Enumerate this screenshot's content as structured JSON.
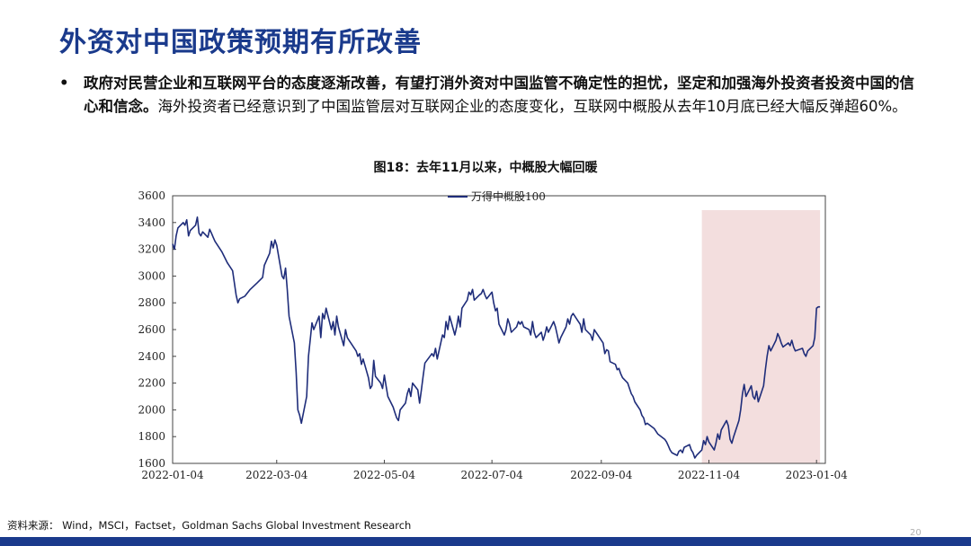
{
  "title": "外资对中国政策预期有所改善",
  "bullet": {
    "bold": "政府对民营企业和互联网平台的态度逐渐改善，有望打消外资对中国监管不确定性的担忧，坚定和加强海外投资者投资中国的信心和信念。",
    "normal": "海外投资者已经意识到了中国监管层对互联网企业的态度变化，互联网中概股从去年10月底已经大幅反弹超60%。"
  },
  "source": "资料来源： Wind，MSCI，Factset，Goldman Sachs Global Investment Research",
  "page_number": "20",
  "colors": {
    "title": "#1a3a8c",
    "line": "#1f2d7a",
    "highlight": "#f3dede",
    "footer": "#1a3a8c"
  },
  "chart_data": {
    "type": "line",
    "title": "图18：去年11月以来，中概股大幅回暖",
    "xlabel": "",
    "ylabel": "",
    "ylim": [
      1600,
      3600
    ],
    "yticks": [
      1600,
      1800,
      2000,
      2200,
      2400,
      2600,
      2800,
      3000,
      3200,
      3400,
      3600
    ],
    "xticks": [
      "2022-01-04",
      "2022-03-04",
      "2022-05-04",
      "2022-07-04",
      "2022-09-04",
      "2022-11-04",
      "2023-01-04"
    ],
    "xlim": [
      "2022-01-04",
      "2023-01-09"
    ],
    "legend_position": "top-center",
    "highlight_range": [
      "2022-10-31",
      "2023-01-06"
    ],
    "series": [
      {
        "name": "万得中概股100",
        "points": [
          [
            "2022-01-04",
            3240
          ],
          [
            "2022-01-05",
            3200
          ],
          [
            "2022-01-06",
            3300
          ],
          [
            "2022-01-07",
            3360
          ],
          [
            "2022-01-10",
            3400
          ],
          [
            "2022-01-11",
            3380
          ],
          [
            "2022-01-12",
            3420
          ],
          [
            "2022-01-13",
            3300
          ],
          [
            "2022-01-14",
            3340
          ],
          [
            "2022-01-17",
            3380
          ],
          [
            "2022-01-18",
            3440
          ],
          [
            "2022-01-19",
            3320
          ],
          [
            "2022-01-20",
            3300
          ],
          [
            "2022-01-21",
            3330
          ],
          [
            "2022-01-24",
            3290
          ],
          [
            "2022-01-25",
            3350
          ],
          [
            "2022-01-26",
            3320
          ],
          [
            "2022-01-27",
            3290
          ],
          [
            "2022-01-28",
            3260
          ],
          [
            "2022-02-01",
            3180
          ],
          [
            "2022-02-04",
            3100
          ],
          [
            "2022-02-07",
            3040
          ],
          [
            "2022-02-09",
            2860
          ],
          [
            "2022-02-10",
            2800
          ],
          [
            "2022-02-11",
            2830
          ],
          [
            "2022-02-14",
            2850
          ],
          [
            "2022-02-17",
            2900
          ],
          [
            "2022-02-21",
            2950
          ],
          [
            "2022-02-24",
            2990
          ],
          [
            "2022-02-25",
            3080
          ],
          [
            "2022-02-28",
            3170
          ],
          [
            "2022-03-01",
            3260
          ],
          [
            "2022-03-02",
            3210
          ],
          [
            "2022-03-03",
            3270
          ],
          [
            "2022-03-04",
            3230
          ],
          [
            "2022-03-07",
            3000
          ],
          [
            "2022-03-08",
            2980
          ],
          [
            "2022-03-09",
            3060
          ],
          [
            "2022-03-10",
            2900
          ],
          [
            "2022-03-11",
            2700
          ],
          [
            "2022-03-14",
            2500
          ],
          [
            "2022-03-15",
            2280
          ],
          [
            "2022-03-16",
            2000
          ],
          [
            "2022-03-17",
            1960
          ],
          [
            "2022-03-18",
            1900
          ],
          [
            "2022-03-21",
            2100
          ],
          [
            "2022-03-22",
            2400
          ],
          [
            "2022-03-23",
            2520
          ],
          [
            "2022-03-24",
            2650
          ],
          [
            "2022-03-25",
            2600
          ],
          [
            "2022-03-28",
            2700
          ],
          [
            "2022-03-29",
            2540
          ],
          [
            "2022-03-30",
            2720
          ],
          [
            "2022-03-31",
            2680
          ],
          [
            "2022-04-01",
            2760
          ],
          [
            "2022-04-04",
            2600
          ],
          [
            "2022-04-05",
            2660
          ],
          [
            "2022-04-06",
            2560
          ],
          [
            "2022-04-07",
            2700
          ],
          [
            "2022-04-08",
            2620
          ],
          [
            "2022-04-11",
            2480
          ],
          [
            "2022-04-12",
            2600
          ],
          [
            "2022-04-13",
            2540
          ],
          [
            "2022-04-14",
            2520
          ],
          [
            "2022-04-18",
            2440
          ],
          [
            "2022-04-19",
            2400
          ],
          [
            "2022-04-20",
            2420
          ],
          [
            "2022-04-21",
            2340
          ],
          [
            "2022-04-22",
            2380
          ],
          [
            "2022-04-25",
            2240
          ],
          [
            "2022-04-26",
            2160
          ],
          [
            "2022-04-27",
            2180
          ],
          [
            "2022-04-28",
            2370
          ],
          [
            "2022-04-29",
            2250
          ],
          [
            "2022-05-02",
            2200
          ],
          [
            "2022-05-03",
            2160
          ],
          [
            "2022-05-04",
            2260
          ],
          [
            "2022-05-05",
            2180
          ],
          [
            "2022-05-06",
            2100
          ],
          [
            "2022-05-09",
            2020
          ],
          [
            "2022-05-10",
            1980
          ],
          [
            "2022-05-11",
            1940
          ],
          [
            "2022-05-12",
            1920
          ],
          [
            "2022-05-13",
            2000
          ],
          [
            "2022-05-16",
            2050
          ],
          [
            "2022-05-17",
            2120
          ],
          [
            "2022-05-18",
            2160
          ],
          [
            "2022-05-19",
            2100
          ],
          [
            "2022-05-20",
            2200
          ],
          [
            "2022-05-23",
            2150
          ],
          [
            "2022-05-24",
            2050
          ],
          [
            "2022-05-25",
            2150
          ],
          [
            "2022-05-26",
            2250
          ],
          [
            "2022-05-27",
            2350
          ],
          [
            "2022-05-31",
            2420
          ],
          [
            "2022-06-01",
            2400
          ],
          [
            "2022-06-02",
            2460
          ],
          [
            "2022-06-03",
            2380
          ],
          [
            "2022-06-06",
            2560
          ],
          [
            "2022-06-07",
            2540
          ],
          [
            "2022-06-08",
            2660
          ],
          [
            "2022-06-09",
            2600
          ],
          [
            "2022-06-10",
            2700
          ],
          [
            "2022-06-13",
            2560
          ],
          [
            "2022-06-14",
            2620
          ],
          [
            "2022-06-15",
            2700
          ],
          [
            "2022-06-16",
            2620
          ],
          [
            "2022-06-17",
            2760
          ],
          [
            "2022-06-20",
            2820
          ],
          [
            "2022-06-21",
            2880
          ],
          [
            "2022-06-22",
            2860
          ],
          [
            "2022-06-23",
            2900
          ],
          [
            "2022-06-24",
            2820
          ],
          [
            "2022-06-27",
            2860
          ],
          [
            "2022-06-28",
            2870
          ],
          [
            "2022-06-29",
            2900
          ],
          [
            "2022-06-30",
            2860
          ],
          [
            "2022-07-01",
            2830
          ],
          [
            "2022-07-04",
            2880
          ],
          [
            "2022-07-05",
            2800
          ],
          [
            "2022-07-06",
            2740
          ],
          [
            "2022-07-07",
            2760
          ],
          [
            "2022-07-08",
            2640
          ],
          [
            "2022-07-11",
            2560
          ],
          [
            "2022-07-12",
            2600
          ],
          [
            "2022-07-13",
            2680
          ],
          [
            "2022-07-14",
            2640
          ],
          [
            "2022-07-15",
            2580
          ],
          [
            "2022-07-18",
            2620
          ],
          [
            "2022-07-19",
            2660
          ],
          [
            "2022-07-20",
            2640
          ],
          [
            "2022-07-21",
            2660
          ],
          [
            "2022-07-22",
            2620
          ],
          [
            "2022-07-25",
            2600
          ],
          [
            "2022-07-26",
            2560
          ],
          [
            "2022-07-27",
            2660
          ],
          [
            "2022-07-28",
            2580
          ],
          [
            "2022-07-29",
            2540
          ],
          [
            "2022-08-01",
            2580
          ],
          [
            "2022-08-02",
            2520
          ],
          [
            "2022-08-03",
            2560
          ],
          [
            "2022-08-04",
            2620
          ],
          [
            "2022-08-05",
            2580
          ],
          [
            "2022-08-08",
            2660
          ],
          [
            "2022-08-09",
            2620
          ],
          [
            "2022-08-10",
            2560
          ],
          [
            "2022-08-11",
            2500
          ],
          [
            "2022-08-12",
            2540
          ],
          [
            "2022-08-15",
            2620
          ],
          [
            "2022-08-16",
            2680
          ],
          [
            "2022-08-17",
            2640
          ],
          [
            "2022-08-18",
            2700
          ],
          [
            "2022-08-19",
            2720
          ],
          [
            "2022-08-22",
            2660
          ],
          [
            "2022-08-23",
            2640
          ],
          [
            "2022-08-24",
            2580
          ],
          [
            "2022-08-25",
            2680
          ],
          [
            "2022-08-26",
            2600
          ],
          [
            "2022-08-29",
            2560
          ],
          [
            "2022-08-30",
            2520
          ],
          [
            "2022-08-31",
            2600
          ],
          [
            "2022-09-01",
            2580
          ],
          [
            "2022-09-02",
            2560
          ],
          [
            "2022-09-05",
            2500
          ],
          [
            "2022-09-06",
            2420
          ],
          [
            "2022-09-07",
            2450
          ],
          [
            "2022-09-08",
            2440
          ],
          [
            "2022-09-09",
            2360
          ],
          [
            "2022-09-12",
            2340
          ],
          [
            "2022-09-13",
            2300
          ],
          [
            "2022-09-14",
            2310
          ],
          [
            "2022-09-15",
            2270
          ],
          [
            "2022-09-16",
            2240
          ],
          [
            "2022-09-19",
            2200
          ],
          [
            "2022-09-20",
            2160
          ],
          [
            "2022-09-21",
            2120
          ],
          [
            "2022-09-22",
            2100
          ],
          [
            "2022-09-23",
            2060
          ],
          [
            "2022-09-26",
            2000
          ],
          [
            "2022-09-27",
            1960
          ],
          [
            "2022-09-28",
            1940
          ],
          [
            "2022-09-29",
            1890
          ],
          [
            "2022-09-30",
            1900
          ],
          [
            "2022-10-04",
            1860
          ],
          [
            "2022-10-05",
            1840
          ],
          [
            "2022-10-06",
            1820
          ],
          [
            "2022-10-10",
            1780
          ],
          [
            "2022-10-11",
            1760
          ],
          [
            "2022-10-12",
            1730
          ],
          [
            "2022-10-13",
            1700
          ],
          [
            "2022-10-14",
            1680
          ],
          [
            "2022-10-17",
            1660
          ],
          [
            "2022-10-18",
            1690
          ],
          [
            "2022-10-19",
            1700
          ],
          [
            "2022-10-20",
            1680
          ],
          [
            "2022-10-21",
            1720
          ],
          [
            "2022-10-24",
            1740
          ],
          [
            "2022-10-25",
            1700
          ],
          [
            "2022-10-26",
            1680
          ],
          [
            "2022-10-27",
            1640
          ],
          [
            "2022-10-28",
            1660
          ],
          [
            "2022-10-31",
            1700
          ],
          [
            "2022-11-01",
            1770
          ],
          [
            "2022-11-02",
            1740
          ],
          [
            "2022-11-03",
            1800
          ],
          [
            "2022-11-04",
            1760
          ],
          [
            "2022-11-07",
            1700
          ],
          [
            "2022-11-08",
            1750
          ],
          [
            "2022-11-09",
            1820
          ],
          [
            "2022-11-10",
            1780
          ],
          [
            "2022-11-11",
            1850
          ],
          [
            "2022-11-14",
            1920
          ],
          [
            "2022-11-15",
            1880
          ],
          [
            "2022-11-16",
            1780
          ],
          [
            "2022-11-17",
            1750
          ],
          [
            "2022-11-18",
            1800
          ],
          [
            "2022-11-21",
            1920
          ],
          [
            "2022-11-22",
            2000
          ],
          [
            "2022-11-23",
            2120
          ],
          [
            "2022-11-24",
            2190
          ],
          [
            "2022-11-25",
            2100
          ],
          [
            "2022-11-28",
            2180
          ],
          [
            "2022-11-29",
            2100
          ],
          [
            "2022-11-30",
            2080
          ],
          [
            "2022-12-01",
            2140
          ],
          [
            "2022-12-02",
            2060
          ],
          [
            "2022-12-05",
            2180
          ],
          [
            "2022-12-06",
            2300
          ],
          [
            "2022-12-07",
            2400
          ],
          [
            "2022-12-08",
            2480
          ],
          [
            "2022-12-09",
            2440
          ],
          [
            "2022-12-12",
            2520
          ],
          [
            "2022-12-13",
            2570
          ],
          [
            "2022-12-14",
            2540
          ],
          [
            "2022-12-15",
            2500
          ],
          [
            "2022-12-16",
            2470
          ],
          [
            "2022-12-19",
            2500
          ],
          [
            "2022-12-20",
            2480
          ],
          [
            "2022-12-21",
            2520
          ],
          [
            "2022-12-22",
            2470
          ],
          [
            "2022-12-23",
            2440
          ],
          [
            "2022-12-27",
            2460
          ],
          [
            "2022-12-28",
            2420
          ],
          [
            "2022-12-29",
            2400
          ],
          [
            "2022-12-30",
            2440
          ],
          [
            "2023-01-02",
            2480
          ],
          [
            "2023-01-03",
            2540
          ],
          [
            "2023-01-04",
            2760
          ],
          [
            "2023-01-05",
            2770
          ],
          [
            "2023-01-06",
            2770
          ]
        ]
      }
    ]
  }
}
